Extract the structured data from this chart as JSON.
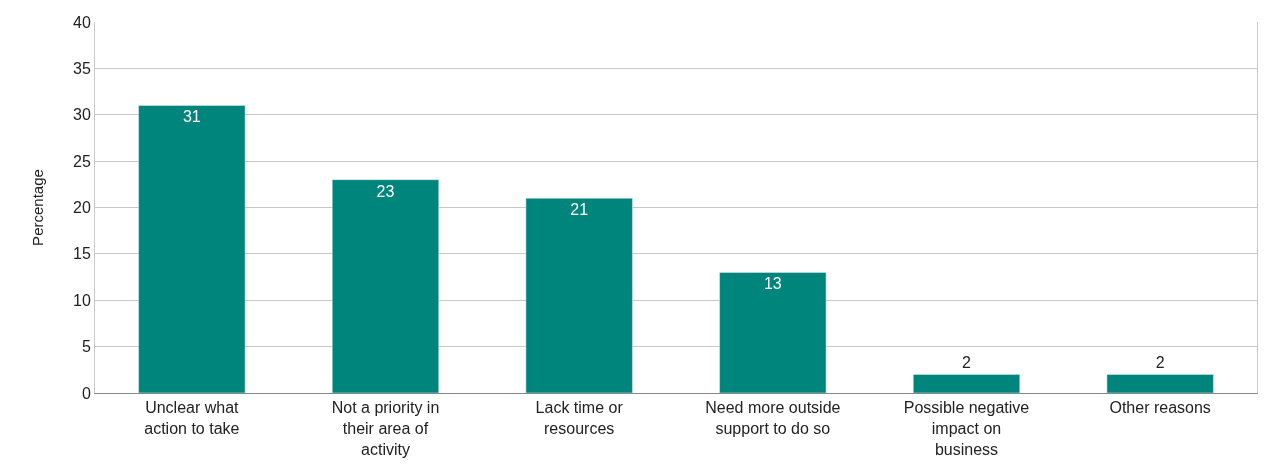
{
  "chart_data": {
    "type": "bar",
    "ylabel": "Percentage",
    "categories": [
      "Unclear what action to take",
      "Not a priority in their area of activity",
      "Lack time or resources",
      "Need more outside support to do so",
      "Possible negative impact on business",
      "Other reasons"
    ],
    "values": [
      31,
      23,
      21,
      13,
      2,
      2
    ],
    "color": "#00857c",
    "ylim": [
      0,
      40
    ],
    "yticks": [
      0,
      5,
      10,
      15,
      20,
      25,
      30,
      35,
      40
    ],
    "grid": "y",
    "data_labels": true
  }
}
